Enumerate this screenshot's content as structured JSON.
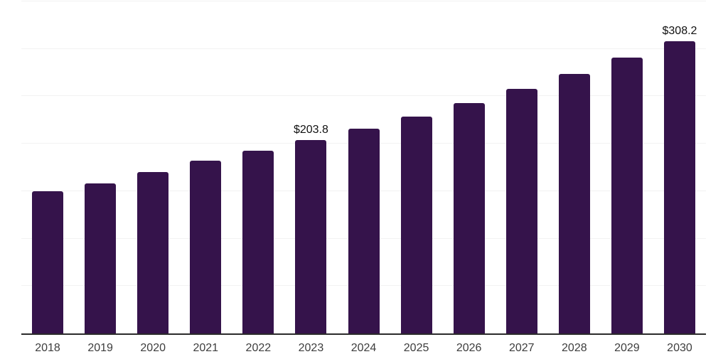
{
  "chart_data": {
    "type": "bar",
    "title": "",
    "xlabel": "",
    "ylabel": "",
    "categories": [
      "2018",
      "2019",
      "2020",
      "2021",
      "2022",
      "2023",
      "2024",
      "2025",
      "2026",
      "2027",
      "2028",
      "2029",
      "2030"
    ],
    "values": [
      149.9,
      158.1,
      170.1,
      182.1,
      192.6,
      203.8,
      215.8,
      228.6,
      242.8,
      257.8,
      273.6,
      290.8,
      308.2
    ],
    "value_prefix": "$",
    "labeled_points": [
      {
        "category": "2023",
        "label": "$203.8"
      },
      {
        "category": "2030",
        "label": "$308.2"
      }
    ],
    "ylim": [
      0,
      350
    ],
    "gridline_step": 50,
    "grid": "horizontal-only",
    "legend": "none",
    "colors": {
      "bar": "#35134b",
      "gridline": "#f2f2f2",
      "axis_line": "#2b2b2b",
      "tick_label": "#3d3d3d",
      "data_label": "#111111",
      "background": "#ffffff"
    }
  }
}
